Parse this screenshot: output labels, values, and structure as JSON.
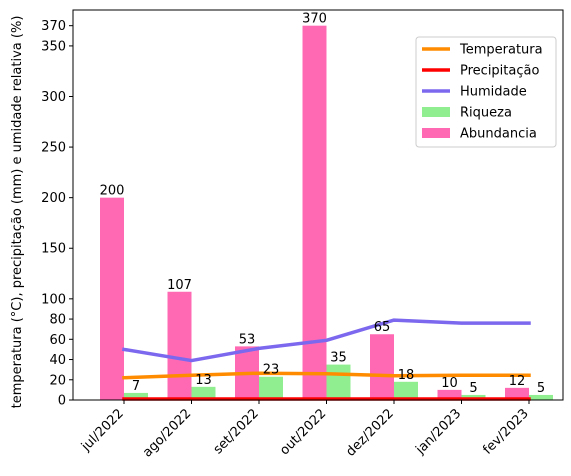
{
  "chart_data": {
    "type": "bar",
    "ylabel": "temperatura (°C), precipitação (mm) e umidade relativa (%)",
    "categories": [
      "jul/2022",
      "ago/2022",
      "set/2022",
      "out/2022",
      "dez/2022",
      "jan/2023",
      "fev/2023"
    ],
    "yticks": [
      0,
      20,
      40,
      60,
      80,
      100,
      150,
      200,
      250,
      300,
      350,
      370
    ],
    "ylim": [
      0,
      370
    ],
    "series": [
      {
        "name": "Abundancia",
        "kind": "bar",
        "color": "#ff69b4",
        "values": [
          200,
          107,
          53,
          370,
          65,
          10,
          12
        ],
        "labels": [
          "200",
          "107",
          "53",
          "370",
          "65",
          "10",
          "12"
        ]
      },
      {
        "name": "Riqueza",
        "kind": "bar",
        "color": "#90ee90",
        "values": [
          7,
          13,
          23,
          35,
          18,
          5,
          5
        ],
        "labels": [
          "7",
          "13",
          "23",
          "35",
          "18",
          "5",
          "5"
        ]
      },
      {
        "name": "Temperatura",
        "kind": "line",
        "color": "#ff8c00",
        "values": [
          22,
          24.5,
          26.5,
          26,
          24,
          24.5,
          24.5
        ]
      },
      {
        "name": "Precipitação",
        "kind": "line",
        "color": "#ff0000",
        "values": [
          1,
          1,
          1,
          1,
          1,
          1,
          1
        ]
      },
      {
        "name": "Humidade",
        "kind": "line",
        "color": "#7b68ee",
        "values": [
          50,
          39,
          51,
          59,
          79,
          76,
          76
        ]
      }
    ],
    "legend": {
      "position": "top-right",
      "order": [
        "Temperatura",
        "Precipitação",
        "Humidade",
        "Riqueza",
        "Abundancia"
      ]
    },
    "grid": false
  }
}
